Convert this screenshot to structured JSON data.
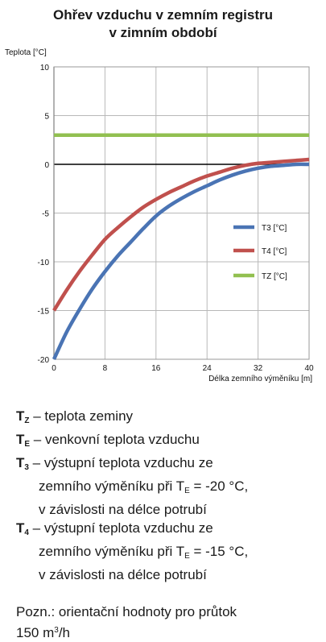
{
  "chart_data": {
    "type": "line",
    "title_line1": "Ohřev vzduchu v zemním registru",
    "title_line2": "v zimním období",
    "ylabel": "Teplota [°C]",
    "xlabel": "Délka zemního výměníku [m]",
    "xlim": [
      0,
      40
    ],
    "ylim": [
      -20,
      10
    ],
    "xticks": [
      "0",
      "8",
      "16",
      "24",
      "32",
      "40"
    ],
    "yticks": [
      "10",
      "5",
      "0",
      "-5",
      "-10",
      "-15",
      "-20"
    ],
    "grid": true,
    "legend_position": "right",
    "series": [
      {
        "name": "T3 [°C]",
        "color": "#4a74b4",
        "x": [
          0,
          2,
          4,
          6,
          8,
          10,
          12,
          14,
          16,
          18,
          20,
          22,
          24,
          26,
          28,
          30,
          32,
          34,
          36,
          38,
          40
        ],
        "y": [
          -20,
          -17.2,
          -14.9,
          -12.8,
          -11.0,
          -9.4,
          -8.0,
          -6.6,
          -5.3,
          -4.3,
          -3.5,
          -2.8,
          -2.2,
          -1.6,
          -1.1,
          -0.7,
          -0.4,
          -0.2,
          -0.1,
          0.0,
          0.0
        ]
      },
      {
        "name": "T4 [°C]",
        "color": "#c0504d",
        "x": [
          0,
          2,
          4,
          6,
          8,
          10,
          12,
          14,
          16,
          18,
          20,
          22,
          24,
          26,
          28,
          30,
          32,
          34,
          36,
          38,
          40
        ],
        "y": [
          -15,
          -12.9,
          -11.0,
          -9.3,
          -7.7,
          -6.5,
          -5.4,
          -4.4,
          -3.6,
          -2.9,
          -2.3,
          -1.7,
          -1.2,
          -0.8,
          -0.4,
          -0.1,
          0.1,
          0.2,
          0.3,
          0.4,
          0.5
        ]
      },
      {
        "name": "TZ [°C]",
        "color": "#92c050",
        "x": [
          0,
          40
        ],
        "y": [
          3,
          3
        ]
      }
    ]
  },
  "legend_text": {
    "tz": {
      "sym": "T",
      "sub": "Z",
      "text": "teplota zeminy"
    },
    "te": {
      "sym": "T",
      "sub": "E",
      "text": "venkovní teplota vzduchu"
    },
    "t3": {
      "sym": "T",
      "sub": "3",
      "line1": "výstupní teplota vzduchu ze",
      "line2a": "zemního výměníku při T",
      "line2sub": "E",
      "line2b": " = -20 °C,",
      "line3": "v závislosti na délce potrubí"
    },
    "t4": {
      "sym": "T",
      "sub": "4",
      "line1": "výstupní teplota vzduchu ze",
      "line2a": "zemního výměníku při T",
      "line2sub": "E",
      "line2b": " = -15 °C,",
      "line3": "v závislosti na délce potrubí"
    },
    "note_line1": "Pozn.: orientační hodnoty pro průtok",
    "note_line2a": "150 m",
    "note_line2sup": "3",
    "note_line2b": "/h"
  }
}
